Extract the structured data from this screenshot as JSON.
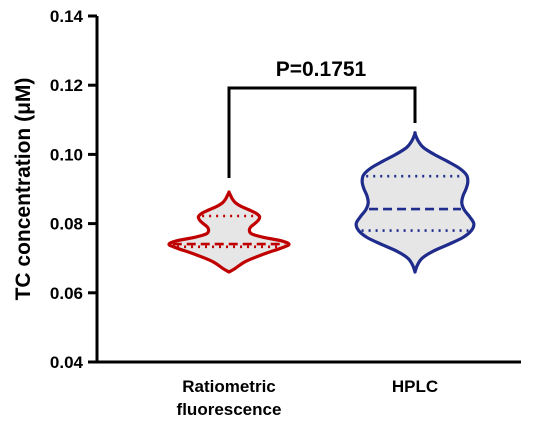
{
  "chart_data": {
    "type": "violin",
    "ylabel": "TC concentration (μM)",
    "ylim": [
      0.04,
      0.14
    ],
    "yticks": [
      "0.04",
      "0.06",
      "0.08",
      "0.10",
      "0.12",
      "0.14"
    ],
    "yticks_values": [
      0.04,
      0.06,
      0.08,
      0.1,
      0.12,
      0.14
    ],
    "categories": [
      "Ratiometric\nfluorescence",
      "HPLC"
    ],
    "series": [
      {
        "category": "Ratiometric fluorescence",
        "color": "#c00000",
        "min": 0.066,
        "max": 0.089,
        "q1": 0.0733,
        "median": 0.0741,
        "q3": 0.0822,
        "profile": [
          [
            0.066,
            0.0
          ],
          [
            0.067,
            0.1
          ],
          [
            0.069,
            0.27
          ],
          [
            0.071,
            0.55
          ],
          [
            0.073,
            0.88
          ],
          [
            0.074,
            1.0
          ],
          [
            0.075,
            0.88
          ],
          [
            0.076,
            0.58
          ],
          [
            0.077,
            0.38
          ],
          [
            0.078,
            0.34
          ],
          [
            0.079,
            0.36
          ],
          [
            0.08,
            0.43
          ],
          [
            0.081,
            0.49
          ],
          [
            0.082,
            0.51
          ],
          [
            0.083,
            0.45
          ],
          [
            0.084,
            0.33
          ],
          [
            0.085,
            0.2
          ],
          [
            0.086,
            0.11
          ],
          [
            0.087,
            0.06
          ],
          [
            0.088,
            0.03
          ],
          [
            0.089,
            0.0
          ]
        ]
      },
      {
        "category": "HPLC",
        "color": "#1f2c8c",
        "min": 0.066,
        "max": 0.106,
        "q1": 0.078,
        "median": 0.0842,
        "q3": 0.0937,
        "profile": [
          [
            0.066,
            0.0
          ],
          [
            0.068,
            0.04
          ],
          [
            0.07,
            0.12
          ],
          [
            0.072,
            0.3
          ],
          [
            0.074,
            0.56
          ],
          [
            0.076,
            0.8
          ],
          [
            0.078,
            0.94
          ],
          [
            0.08,
            0.98
          ],
          [
            0.082,
            0.91
          ],
          [
            0.084,
            0.82
          ],
          [
            0.086,
            0.78
          ],
          [
            0.088,
            0.8
          ],
          [
            0.09,
            0.85
          ],
          [
            0.092,
            0.88
          ],
          [
            0.094,
            0.86
          ],
          [
            0.096,
            0.74
          ],
          [
            0.098,
            0.54
          ],
          [
            0.1,
            0.32
          ],
          [
            0.102,
            0.14
          ],
          [
            0.104,
            0.05
          ],
          [
            0.106,
            0.0
          ]
        ]
      }
    ],
    "significance": {
      "text": "P=0.1751"
    }
  }
}
